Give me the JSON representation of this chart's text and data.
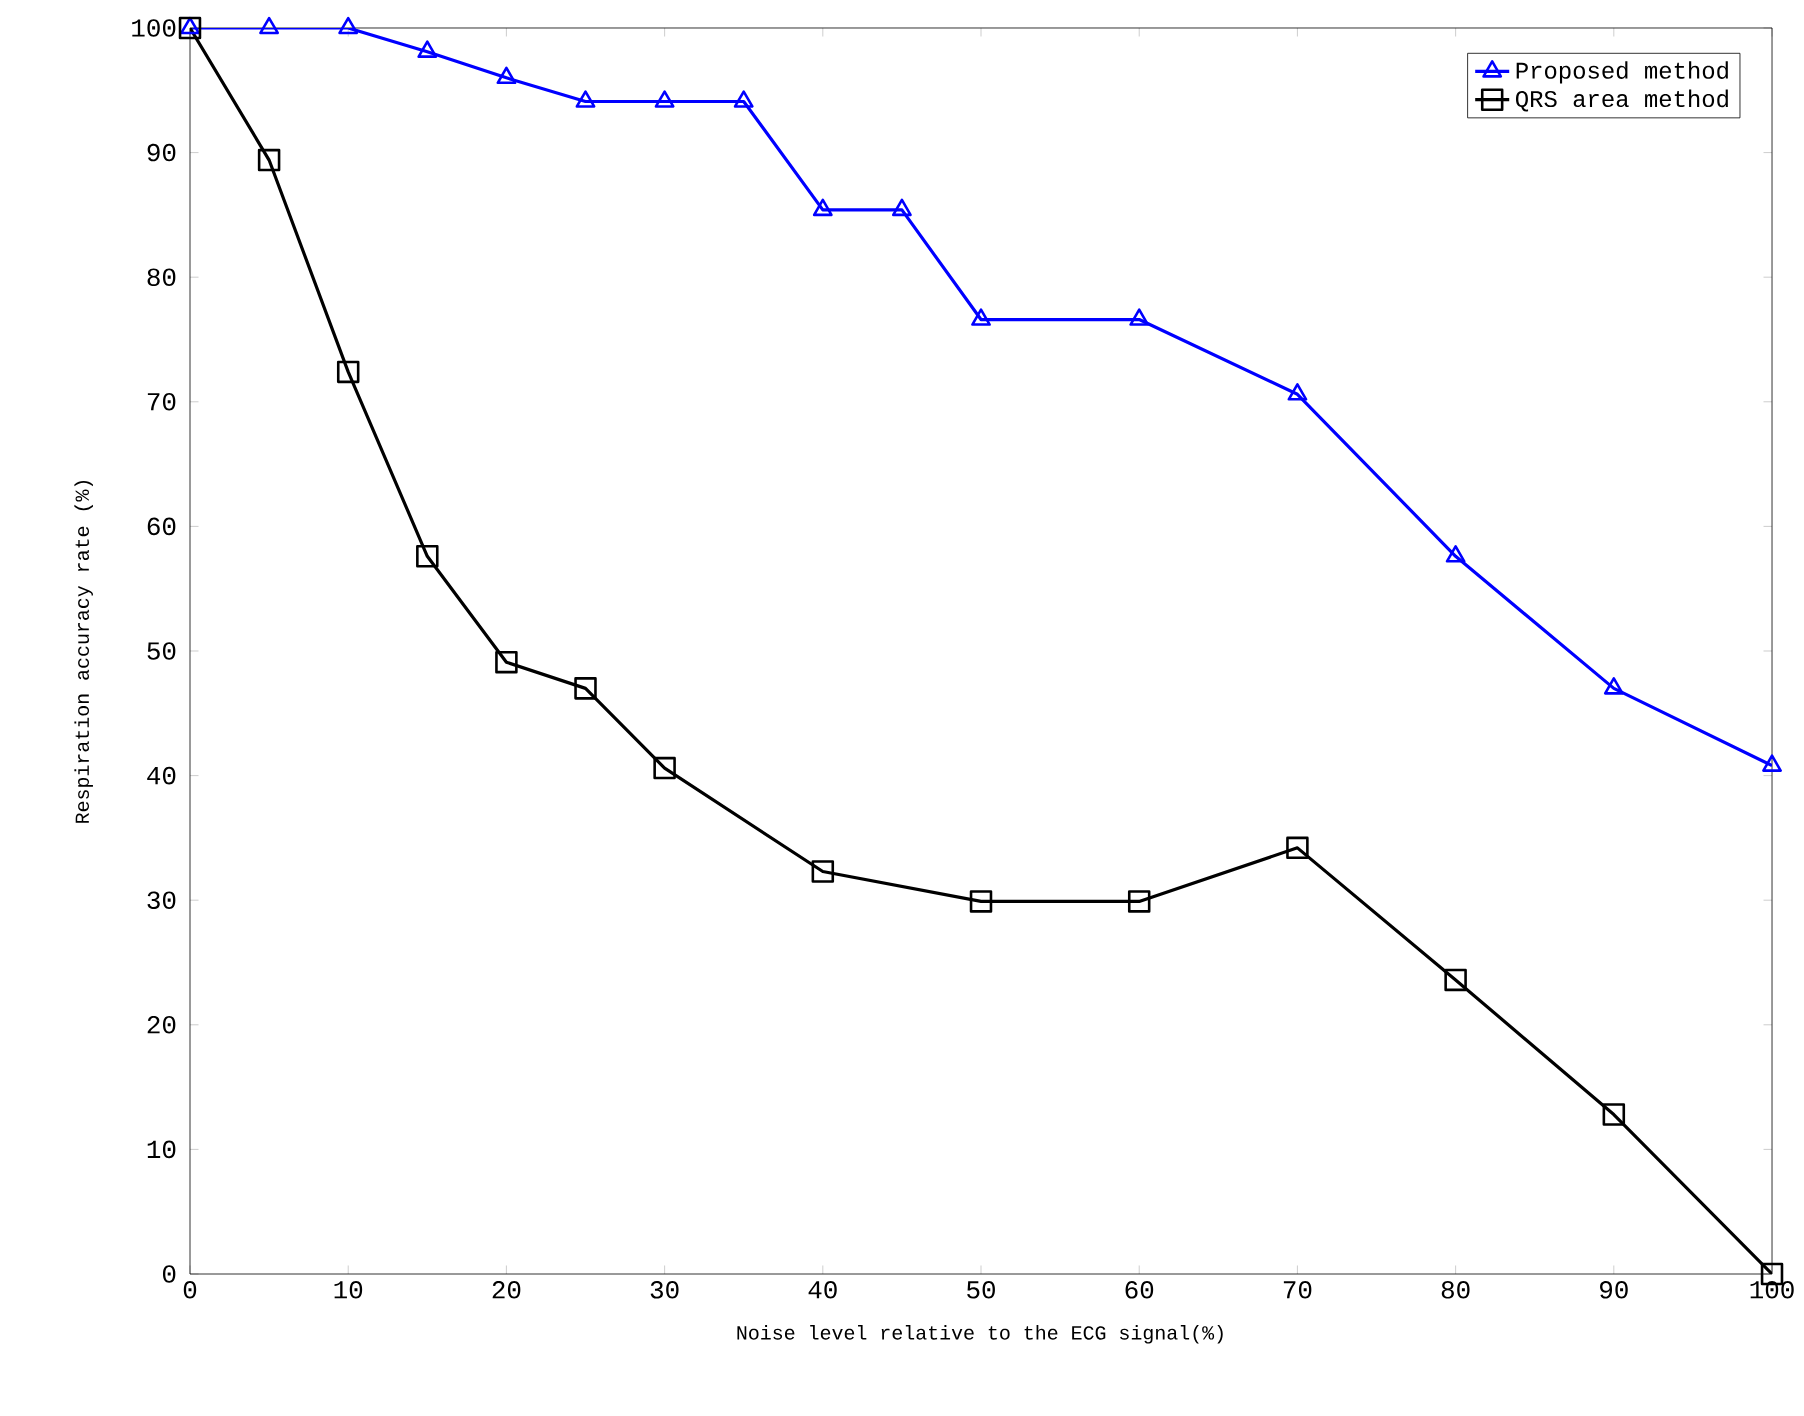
{
  "chart_data": {
    "type": "line",
    "xlabel": "Noise level relative to the ECG signal(%)",
    "ylabel": "Respiration accuracy rate (%)",
    "xlim": [
      0,
      100
    ],
    "ylim": [
      0,
      100
    ],
    "xticks": [
      0,
      10,
      20,
      30,
      40,
      50,
      60,
      70,
      80,
      90,
      100
    ],
    "yticks": [
      0,
      10,
      20,
      30,
      40,
      50,
      60,
      70,
      80,
      90,
      100
    ],
    "legend": "top right",
    "series": [
      {
        "name": "Proposed method",
        "color": "#0000ff",
        "marker": "triangle",
        "x": [
          0,
          5,
          10,
          15,
          20,
          25,
          30,
          35,
          40,
          45,
          50,
          60,
          70,
          80,
          90,
          100
        ],
        "values": [
          100,
          100,
          100,
          98.1,
          96,
          94.1,
          94.1,
          94.1,
          85.4,
          85.4,
          76.6,
          76.6,
          70.6,
          57.6,
          47,
          40.8
        ]
      },
      {
        "name": "QRS area method",
        "color": "#000000",
        "marker": "square",
        "x": [
          0,
          5,
          10,
          15,
          20,
          25,
          30,
          40,
          50,
          60,
          70,
          80,
          90,
          100
        ],
        "values": [
          100,
          89.4,
          72.4,
          57.6,
          49.1,
          47,
          40.6,
          32.3,
          29.9,
          29.9,
          34.2,
          23.6,
          12.8,
          0
        ]
      }
    ]
  }
}
